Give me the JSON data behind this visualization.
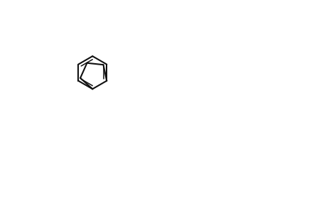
{
  "bg": "#ffffff",
  "lc": "#1a1a1a",
  "lw": 1.5,
  "lw2": 1.0,
  "fs": 11,
  "fs_small": 9
}
